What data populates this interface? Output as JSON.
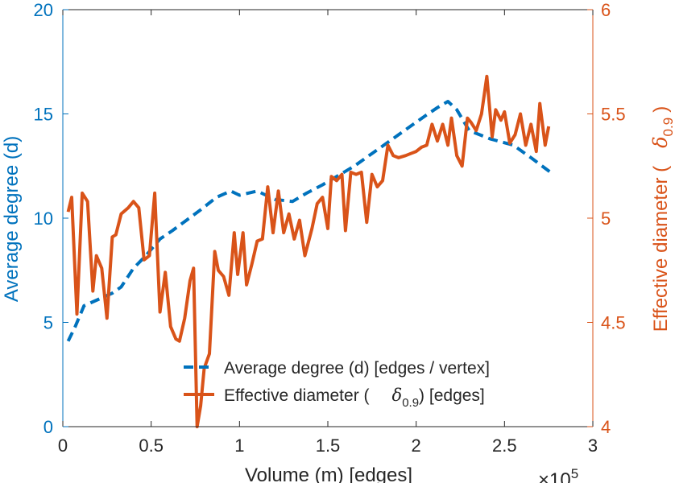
{
  "chart_data": {
    "type": "line",
    "title": "",
    "xlabel": "Volume (m) [edges]",
    "x_multiplier_label": "×10",
    "x_multiplier_exp": "5",
    "xlim": [
      0,
      3
    ],
    "x_ticks": [
      "0",
      "0.5",
      "1",
      "1.5",
      "2",
      "2.5",
      "3"
    ],
    "ylabel_left": "Average degree (d)",
    "ylim_left": [
      0,
      20
    ],
    "y_ticks_left": [
      "0",
      "5",
      "10",
      "15",
      "20"
    ],
    "ylabel_right": "Effective diameter (",
    "ylabel_right_symbol": "δ",
    "ylabel_right_sub": "0.9",
    "ylabel_right_close": ")",
    "ylim_right": [
      4,
      6
    ],
    "y_ticks_right": [
      "4",
      "4.5",
      "5",
      "5.5",
      "6"
    ],
    "grid": false,
    "legend_position": "bottom-center",
    "legend": [
      {
        "label": "Average degree (d) [edges / vertex]"
      },
      {
        "label_pre": "Effective diameter (",
        "symbol": "δ",
        "sub": "0.9",
        "label_post": ") [edges]"
      }
    ],
    "colors": {
      "left": "#0072BD",
      "right": "#D95319",
      "axis": "#262626"
    },
    "series": [
      {
        "name": "Average degree (d) [edges / vertex]",
        "axis": "left",
        "style": "dashed",
        "x": [
          0.03,
          0.07,
          0.12,
          0.2,
          0.28,
          0.33,
          0.4,
          0.47,
          0.55,
          0.62,
          0.7,
          0.78,
          0.87,
          0.95,
          1.0,
          1.1,
          1.2,
          1.3,
          1.38,
          1.47,
          1.55,
          1.65,
          1.75,
          1.85,
          1.95,
          2.05,
          2.12,
          2.18,
          2.23,
          2.3,
          2.42,
          2.55,
          2.65,
          2.76
        ],
        "values": [
          4.1,
          4.8,
          5.8,
          6.1,
          6.4,
          6.7,
          7.6,
          8.2,
          9.0,
          9.4,
          9.9,
          10.4,
          11.0,
          11.3,
          11.1,
          11.3,
          10.9,
          10.8,
          11.2,
          11.6,
          12.0,
          12.5,
          13.1,
          13.7,
          14.3,
          14.9,
          15.3,
          15.6,
          15.2,
          14.2,
          13.8,
          13.5,
          12.9,
          12.2
        ]
      },
      {
        "name": "Effective diameter (δ0.9) [edges]",
        "axis": "right",
        "style": "solid",
        "x": [
          0.03,
          0.05,
          0.08,
          0.11,
          0.14,
          0.17,
          0.19,
          0.22,
          0.25,
          0.28,
          0.3,
          0.33,
          0.37,
          0.4,
          0.43,
          0.46,
          0.49,
          0.52,
          0.55,
          0.58,
          0.61,
          0.64,
          0.66,
          0.69,
          0.72,
          0.74,
          0.76,
          0.78,
          0.8,
          0.83,
          0.86,
          0.88,
          0.91,
          0.94,
          0.97,
          0.99,
          1.02,
          1.04,
          1.07,
          1.1,
          1.13,
          1.16,
          1.19,
          1.22,
          1.25,
          1.28,
          1.31,
          1.34,
          1.37,
          1.41,
          1.44,
          1.47,
          1.5,
          1.52,
          1.55,
          1.58,
          1.6,
          1.63,
          1.66,
          1.69,
          1.72,
          1.75,
          1.78,
          1.81,
          1.84,
          1.87,
          1.9,
          1.94,
          1.97,
          2.0,
          2.03,
          2.06,
          2.09,
          2.12,
          2.15,
          2.18,
          2.2,
          2.23,
          2.26,
          2.29,
          2.31,
          2.34,
          2.37,
          2.4,
          2.43,
          2.45,
          2.48,
          2.5,
          2.53,
          2.56,
          2.59,
          2.62,
          2.65,
          2.68,
          2.7,
          2.73,
          2.75
        ],
        "values": [
          5.03,
          5.1,
          4.54,
          5.12,
          5.08,
          4.65,
          4.82,
          4.76,
          4.52,
          4.91,
          4.92,
          5.02,
          5.05,
          5.08,
          5.05,
          4.8,
          4.82,
          5.12,
          4.55,
          4.74,
          4.48,
          4.42,
          4.41,
          4.52,
          4.7,
          4.76,
          4.0,
          4.1,
          4.28,
          4.35,
          4.84,
          4.75,
          4.72,
          4.63,
          4.93,
          4.73,
          4.93,
          4.68,
          4.78,
          4.89,
          4.9,
          5.15,
          4.93,
          5.13,
          4.93,
          5.02,
          4.9,
          4.99,
          4.82,
          4.95,
          5.07,
          5.1,
          4.95,
          5.2,
          5.18,
          5.21,
          4.94,
          5.22,
          5.21,
          5.22,
          4.98,
          5.21,
          5.15,
          5.18,
          5.35,
          5.3,
          5.29,
          5.3,
          5.31,
          5.32,
          5.34,
          5.35,
          5.45,
          5.37,
          5.45,
          5.35,
          5.48,
          5.3,
          5.25,
          5.48,
          5.46,
          5.42,
          5.5,
          5.68,
          5.39,
          5.52,
          5.47,
          5.51,
          5.36,
          5.4,
          5.5,
          5.35,
          5.45,
          5.32,
          5.55,
          5.35,
          5.44
        ]
      }
    ]
  }
}
